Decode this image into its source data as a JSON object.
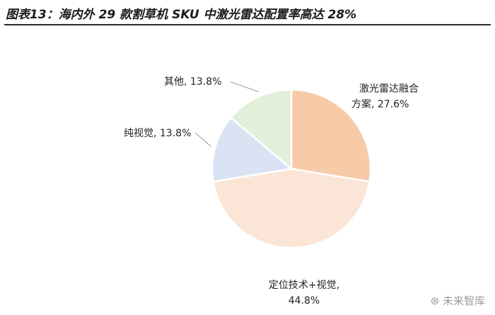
{
  "title": "图表13：海内外 29 款割草机 SKU 中激光雷达配置率高达 28%",
  "watermark": "未来智库",
  "chart_data": {
    "type": "pie",
    "slices": [
      {
        "label_lines": [
          "激光雷达融合",
          "方案, 27.6%"
        ],
        "value": 27.6,
        "color": "#f8cba8"
      },
      {
        "label_lines": [
          "定位技术+视觉,",
          "44.8%"
        ],
        "value": 44.8,
        "color": "#fbe5d6"
      },
      {
        "label_lines": [
          "纯视觉, 13.8%"
        ],
        "value": 13.8,
        "color": "#dae3f3"
      },
      {
        "label_lines": [
          "其他, 13.8%"
        ],
        "value": 13.8,
        "color": "#e2efda"
      }
    ]
  }
}
